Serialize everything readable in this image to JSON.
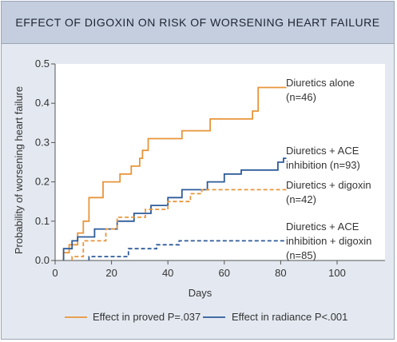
{
  "chart_data": {
    "type": "line",
    "title": "EFFECT OF DIGOXIN ON RISK OF WORSENING HEART FAILURE",
    "xlabel": "Days",
    "ylabel": "Probability of worsening heart failure",
    "xlim": [
      0,
      117
    ],
    "ylim": [
      0,
      0.5
    ],
    "x_ticks": [
      "0",
      "20",
      "40",
      "60",
      "80",
      "100"
    ],
    "x_tick_values": [
      0,
      20,
      40,
      60,
      80,
      100
    ],
    "y_ticks": [
      "0.0",
      "0.1",
      "0.2",
      "0.3",
      "0.4",
      "0.5"
    ],
    "y_tick_values": [
      0,
      0.1,
      0.2,
      0.3,
      0.4,
      0.5
    ],
    "grid": false,
    "colors": {
      "orange": "#e8953a",
      "blue": "#2e5b9a"
    },
    "series": [
      {
        "name": "Diuretics alone",
        "n_label": "(n=46)",
        "color": "#e8953a",
        "style": "solid",
        "points": [
          [
            3,
            0
          ],
          [
            3,
            0.02
          ],
          [
            5,
            0.02
          ],
          [
            5,
            0.04
          ],
          [
            8,
            0.04
          ],
          [
            8,
            0.07
          ],
          [
            10,
            0.07
          ],
          [
            10,
            0.1
          ],
          [
            12,
            0.1
          ],
          [
            12,
            0.16
          ],
          [
            17,
            0.16
          ],
          [
            17,
            0.2
          ],
          [
            23,
            0.2
          ],
          [
            23,
            0.22
          ],
          [
            27,
            0.22
          ],
          [
            27,
            0.24
          ],
          [
            30,
            0.24
          ],
          [
            30,
            0.26
          ],
          [
            31,
            0.26
          ],
          [
            31,
            0.28
          ],
          [
            33,
            0.28
          ],
          [
            33,
            0.31
          ],
          [
            45,
            0.31
          ],
          [
            45,
            0.33
          ],
          [
            55,
            0.33
          ],
          [
            55,
            0.36
          ],
          [
            70,
            0.36
          ],
          [
            70,
            0.38
          ],
          [
            72,
            0.38
          ],
          [
            72,
            0.44
          ],
          [
            82,
            0.44
          ]
        ]
      },
      {
        "name": "Diuretics + ACE inhibition",
        "n_label": "(n=93)",
        "color": "#2e5b9a",
        "style": "solid",
        "points": [
          [
            3,
            0
          ],
          [
            3,
            0.03
          ],
          [
            6,
            0.03
          ],
          [
            6,
            0.05
          ],
          [
            8,
            0.05
          ],
          [
            8,
            0.06
          ],
          [
            14,
            0.06
          ],
          [
            14,
            0.08
          ],
          [
            22,
            0.08
          ],
          [
            22,
            0.1
          ],
          [
            28,
            0.1
          ],
          [
            28,
            0.12
          ],
          [
            34,
            0.12
          ],
          [
            34,
            0.14
          ],
          [
            40,
            0.14
          ],
          [
            40,
            0.16
          ],
          [
            45,
            0.16
          ],
          [
            45,
            0.18
          ],
          [
            54,
            0.18
          ],
          [
            54,
            0.2
          ],
          [
            60,
            0.2
          ],
          [
            60,
            0.22
          ],
          [
            66,
            0.22
          ],
          [
            66,
            0.23
          ],
          [
            79,
            0.23
          ],
          [
            79,
            0.25
          ],
          [
            81,
            0.25
          ],
          [
            81,
            0.26
          ],
          [
            82,
            0.26
          ]
        ]
      },
      {
        "name": "Diuretics + digoxin",
        "n_label": "(n=42)",
        "color": "#e8953a",
        "style": "dashed",
        "points": [
          [
            6,
            0
          ],
          [
            6,
            0.01
          ],
          [
            10,
            0.01
          ],
          [
            10,
            0.05
          ],
          [
            18,
            0.05
          ],
          [
            18,
            0.08
          ],
          [
            22,
            0.08
          ],
          [
            22,
            0.11
          ],
          [
            32,
            0.11
          ],
          [
            32,
            0.13
          ],
          [
            40,
            0.13
          ],
          [
            40,
            0.15
          ],
          [
            48,
            0.15
          ],
          [
            48,
            0.17
          ],
          [
            52,
            0.17
          ],
          [
            52,
            0.18
          ],
          [
            82,
            0.18
          ]
        ]
      },
      {
        "name": "Diuretics + ACE inhibition + digoxin",
        "n_label": "(n=85)",
        "color": "#2e5b9a",
        "style": "dashed",
        "points": [
          [
            12,
            0
          ],
          [
            12,
            0.01
          ],
          [
            26,
            0.01
          ],
          [
            26,
            0.03
          ],
          [
            36,
            0.03
          ],
          [
            36,
            0.04
          ],
          [
            44,
            0.04
          ],
          [
            44,
            0.05
          ],
          [
            82,
            0.05
          ]
        ]
      }
    ],
    "annotations": [
      {
        "series": 0,
        "lines": [
          "Diuretics alone",
          "(n=46)"
        ]
      },
      {
        "series": 1,
        "lines": [
          "Diuretics + ACE",
          "inhibition (n=93)"
        ]
      },
      {
        "series": 2,
        "lines": [
          "Diuretics + digoxin",
          "(n=42)"
        ]
      },
      {
        "series": 3,
        "lines": [
          "Diuretics + ACE",
          "inhibition + digoxin",
          "(n=85)"
        ]
      }
    ],
    "legend": {
      "position": "bottom",
      "items": [
        {
          "label": "Effect in proved P=.037",
          "color": "#e8953a"
        },
        {
          "label": "Effect in radiance P<.001",
          "color": "#2e5b9a"
        }
      ]
    }
  }
}
